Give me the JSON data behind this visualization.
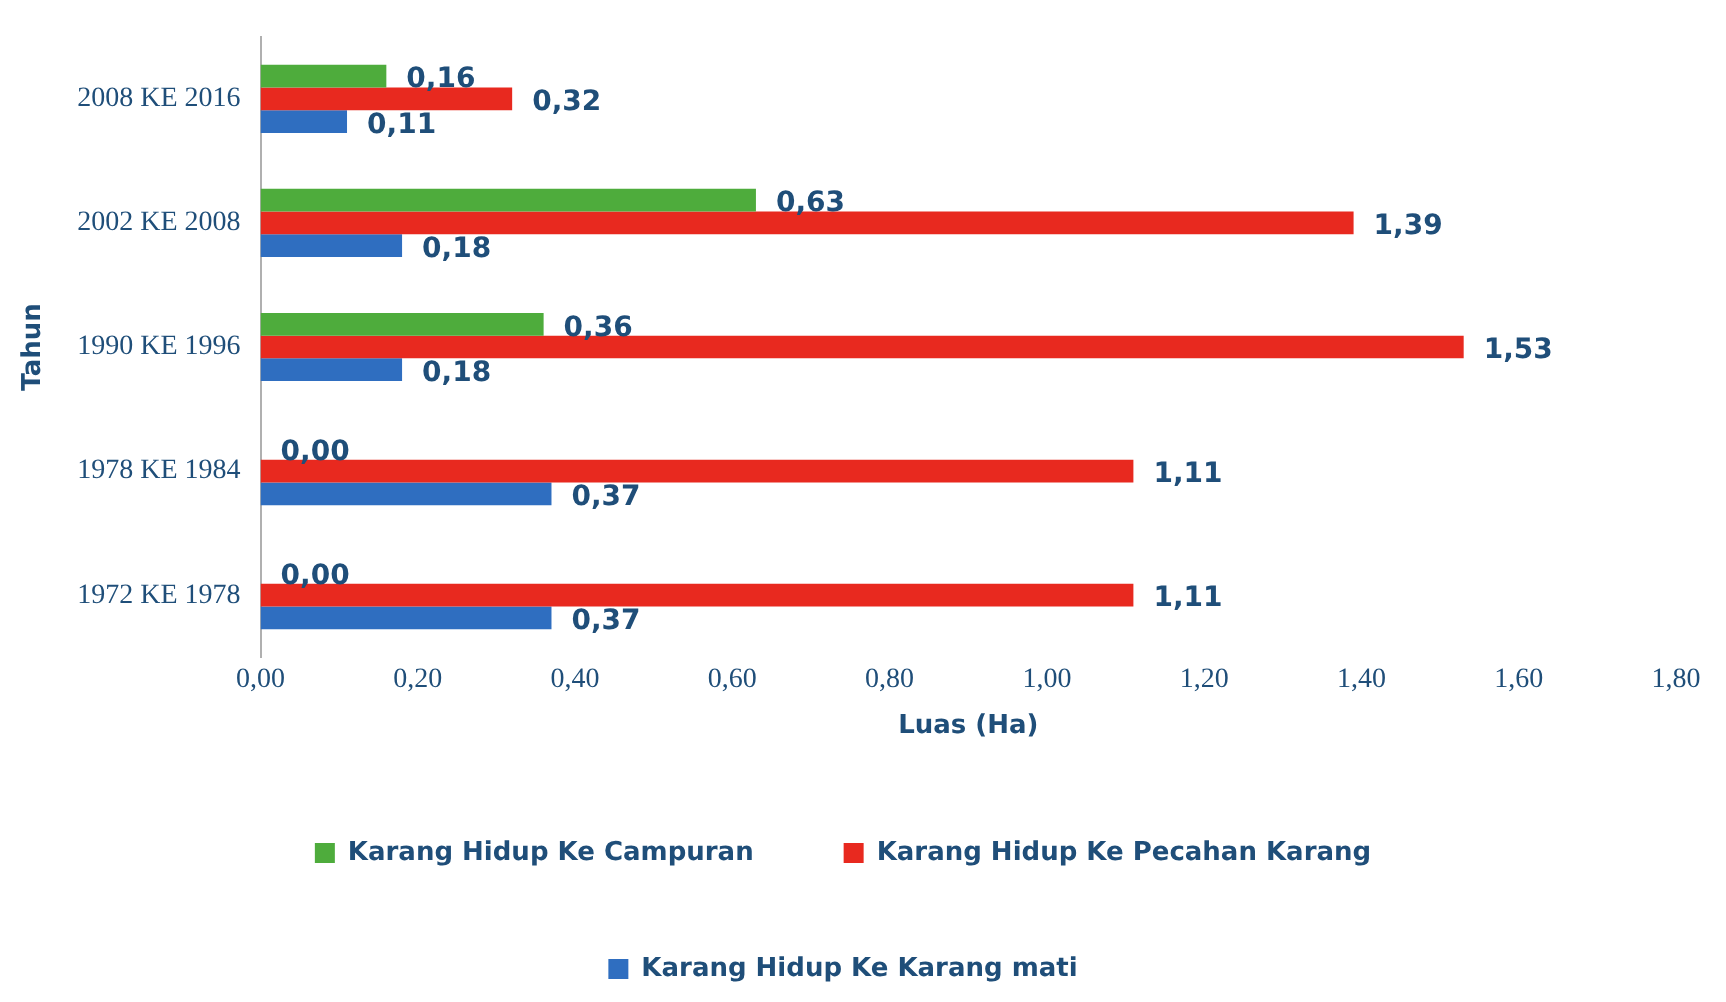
{
  "chart_data": {
    "type": "bar",
    "orientation": "horizontal",
    "xlabel": "Luas (Ha)",
    "ylabel": "Tahun",
    "categories": [
      "2008 KE 2016",
      "2002 KE 2008",
      "1990 KE 1996",
      "1978 KE 1984",
      "1972 KE 1978"
    ],
    "series": [
      {
        "name": "Karang Hidup Ke Campuran",
        "color": "#4eac3c",
        "values": [
          0.16,
          0.63,
          0.36,
          0,
          0
        ],
        "value_labels": [
          "0,16",
          "0,63",
          "0,36",
          "0,00",
          "0,00"
        ]
      },
      {
        "name": "Karang Hidup Ke Pecahan Karang",
        "color": "#e8291f",
        "values": [
          0.32,
          1.39,
          1.53,
          1.11,
          1.11
        ],
        "value_labels": [
          "0,32",
          "1,39",
          "1,53",
          "1,11",
          "1,11"
        ]
      },
      {
        "name": "Karang Hidup Ke Karang mati",
        "color": "#2f6ec0",
        "values": [
          0.11,
          0.18,
          0.18,
          0.37,
          0.37
        ],
        "value_labels": [
          "0,11",
          "0,18",
          "0,18",
          "0,37",
          "0,37"
        ]
      }
    ],
    "xlim": [
      0,
      1.8
    ],
    "xticks": [
      {
        "value": 0,
        "label": "0,00"
      },
      {
        "value": 0.2,
        "label": "0,20"
      },
      {
        "value": 0.4,
        "label": "0,40"
      },
      {
        "value": 0.6,
        "label": "0,60"
      },
      {
        "value": 0.8,
        "label": "0,80"
      },
      {
        "value": 1,
        "label": "1,00"
      },
      {
        "value": 1.2,
        "label": "1,20"
      },
      {
        "value": 1.4,
        "label": "1,40"
      },
      {
        "value": 1.6,
        "label": "1,60"
      },
      {
        "value": 1.8,
        "label": "1,80"
      }
    ],
    "grid": false,
    "legend": "bottom"
  }
}
